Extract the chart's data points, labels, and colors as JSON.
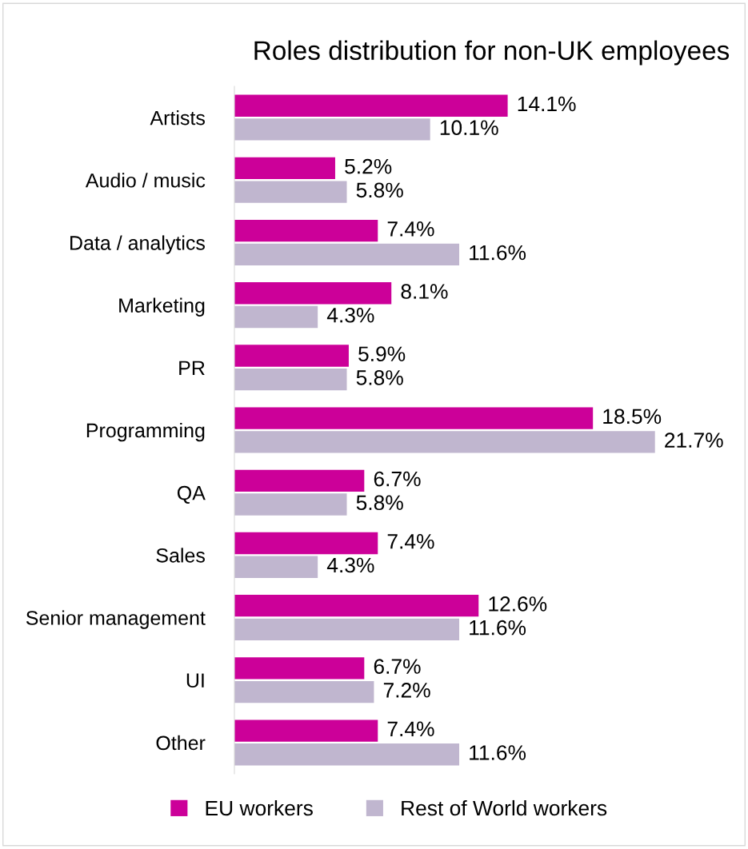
{
  "chart_data": {
    "type": "bar",
    "orientation": "horizontal",
    "title": "Roles distribution for non-UK employees",
    "categories": [
      "Artists",
      "Audio / music",
      "Data / analytics",
      "Marketing",
      "PR",
      "Programming",
      "QA",
      "Sales",
      "Senior management",
      "UI",
      "Other"
    ],
    "series": [
      {
        "name": "EU workers",
        "color": "#cc0099",
        "values": [
          14.1,
          5.2,
          7.4,
          8.1,
          5.9,
          18.5,
          6.7,
          7.4,
          12.6,
          6.7,
          7.4
        ],
        "value_labels": [
          "14.1%",
          "5.2%",
          "7.4%",
          "8.1%",
          "5.9%",
          "18.5%",
          "6.7%",
          "7.4%",
          "12.6%",
          "6.7%",
          "7.4%"
        ]
      },
      {
        "name": "Rest of World workers",
        "color": "#c0b6cf",
        "values": [
          10.1,
          5.8,
          11.6,
          4.3,
          5.8,
          21.7,
          5.8,
          4.3,
          11.6,
          7.2,
          11.6
        ],
        "value_labels": [
          "10.1%",
          "5.8%",
          "11.6%",
          "4.3%",
          "5.8%",
          "21.7%",
          "5.8%",
          "4.3%",
          "11.6%",
          "7.2%",
          "11.6%"
        ]
      }
    ],
    "xlim": [
      0,
      26.5
    ],
    "tick_labels": "y",
    "grid": false,
    "legend": "bottom"
  }
}
